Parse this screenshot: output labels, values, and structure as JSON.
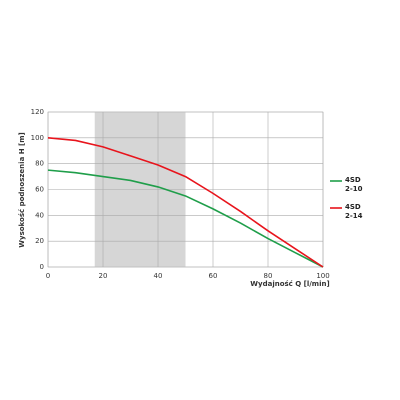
{
  "chart_data": {
    "type": "line",
    "x_label": "Wydajność Q [l/min]",
    "y_label": "Wysokość podnoszenia H [m]",
    "x": [
      0,
      10,
      20,
      30,
      40,
      50,
      60,
      70,
      80,
      90,
      100
    ],
    "series": [
      {
        "name": "4SD 2-10",
        "color": "#1f9e4a",
        "values": [
          75,
          73,
          70,
          67,
          62,
          55,
          45,
          34,
          22,
          11,
          0
        ]
      },
      {
        "name": "4SD 2-14",
        "color": "#e8141c",
        "values": [
          100,
          98,
          93,
          86,
          79,
          70,
          57,
          43,
          28,
          14,
          0
        ]
      }
    ],
    "shaded_region": [
      17,
      50
    ],
    "xlim": [
      0,
      100
    ],
    "xticks": [
      0,
      20,
      40,
      60,
      80,
      100
    ],
    "ylim": [
      0,
      120
    ],
    "yticks": [
      0,
      20,
      40,
      60,
      80,
      100,
      120
    ],
    "grid": true,
    "legend": "right"
  }
}
